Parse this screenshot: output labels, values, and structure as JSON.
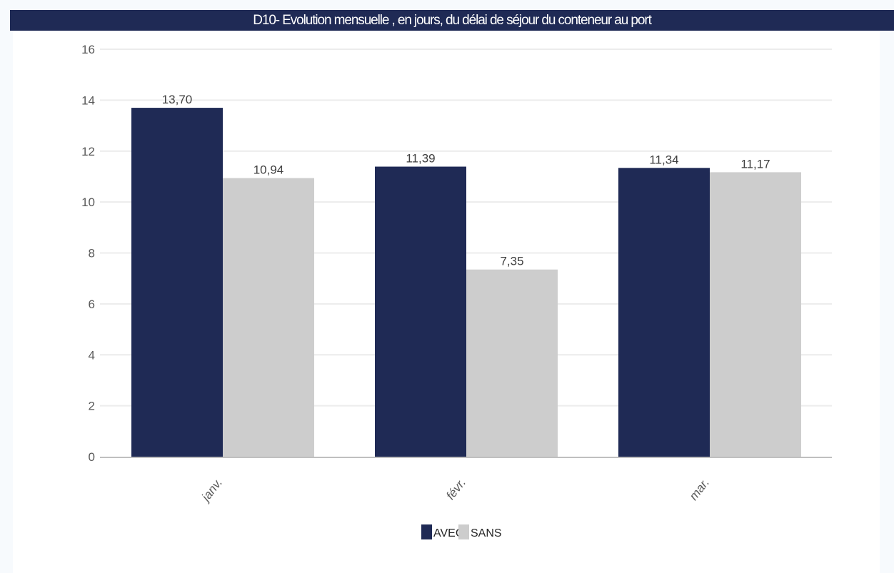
{
  "chart_data": {
    "type": "bar",
    "title": "D10- Evolution mensuelle , en jours, du délai de séjour du conteneur au port",
    "xlabel": "",
    "ylabel": "",
    "categories": [
      "janv.",
      "févr.",
      "mar."
    ],
    "series": [
      {
        "name": "AVEC",
        "color": "#1f2a55",
        "values": [
          13.7,
          11.39,
          11.34
        ],
        "labels": [
          "13,70",
          "11,39",
          "11,34"
        ]
      },
      {
        "name": "SANS",
        "color": "#cdcdcd",
        "values": [
          10.94,
          7.35,
          11.17
        ],
        "labels": [
          "10,94",
          "7,35",
          "11,17"
        ]
      }
    ],
    "ylim": [
      0,
      16
    ],
    "yticks": [
      0,
      2,
      4,
      6,
      8,
      10,
      12,
      14,
      16
    ],
    "grid": true,
    "legend": "bottom-center"
  }
}
